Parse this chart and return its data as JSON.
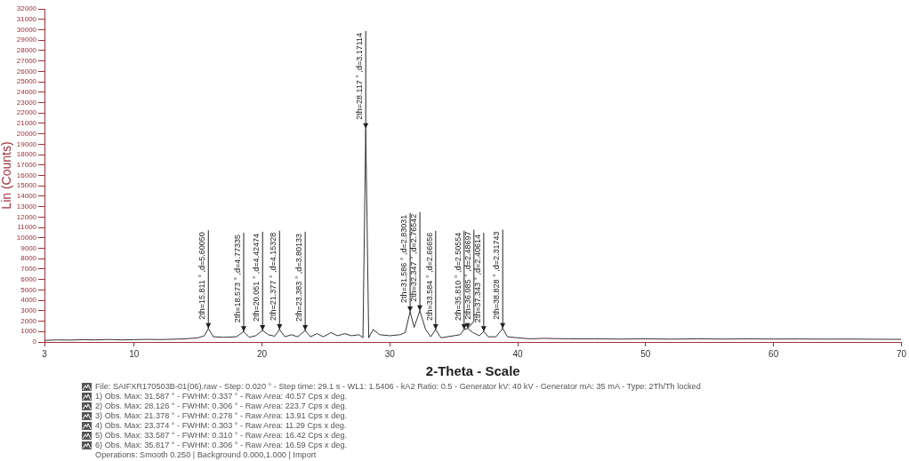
{
  "chart_data": {
    "type": "line",
    "xlabel": "2-Theta - Scale",
    "ylabel": "Lin (Counts)",
    "xlim": [
      3,
      70
    ],
    "xticks": [
      3,
      10,
      20,
      30,
      40,
      50,
      60,
      70
    ],
    "ylim": [
      0,
      32000
    ],
    "yticks": [
      0,
      1000,
      2000,
      3000,
      4000,
      5000,
      6000,
      7000,
      8000,
      9000,
      10000,
      11000,
      12000,
      13000,
      14000,
      15000,
      16000,
      17000,
      18000,
      19000,
      20000,
      21000,
      22000,
      23000,
      24000,
      25000,
      26000,
      27000,
      28000,
      29000,
      30000,
      31000,
      32000
    ],
    "grid": false,
    "legend": false,
    "marker": "none",
    "line_style": "solid",
    "series": [
      {
        "color": "#333333",
        "x": [
          3,
          4,
          5,
          6,
          7,
          8,
          9,
          10,
          11,
          12,
          13,
          14,
          15,
          15.5,
          15.811,
          16.2,
          17,
          18,
          18.573,
          19,
          19.5,
          20.051,
          20.5,
          21,
          21.377,
          21.8,
          22.3,
          22.8,
          23.383,
          23.8,
          24.3,
          24.8,
          25.4,
          25.9,
          26.5,
          27,
          27.6,
          27.9,
          28.117,
          28.35,
          28.7,
          29.2,
          30,
          30.8,
          31.2,
          31.586,
          31.9,
          32.347,
          32.8,
          33.2,
          33.584,
          34,
          34.5,
          35,
          35.5,
          35.81,
          36.085,
          36.5,
          37,
          37.343,
          37.7,
          38.3,
          38.828,
          39.2,
          40,
          41,
          42,
          44,
          46,
          48,
          50,
          52,
          54,
          56,
          58,
          60,
          62,
          64,
          66,
          68,
          70
        ],
        "values": [
          150,
          200,
          180,
          220,
          200,
          240,
          200,
          220,
          250,
          230,
          260,
          300,
          400,
          600,
          1300,
          500,
          450,
          500,
          1000,
          450,
          600,
          1100,
          700,
          550,
          1200,
          500,
          700,
          500,
          1100,
          500,
          800,
          500,
          900,
          600,
          800,
          600,
          700,
          400,
          20500,
          400,
          1200,
          700,
          600,
          700,
          900,
          2900,
          1400,
          3000,
          1200,
          500,
          1200,
          400,
          500,
          600,
          700,
          1200,
          1300,
          900,
          600,
          1000,
          500,
          500,
          1300,
          500,
          400,
          300,
          350,
          300,
          300,
          280,
          300,
          270,
          300,
          280,
          300,
          280,
          290,
          270,
          280,
          260,
          250
        ]
      }
    ],
    "annotations": [
      {
        "text": "2th=15.811 ° ,d=5.60050",
        "x": 15.811,
        "y": 1300
      },
      {
        "text": "2th=18.573 ° ,d=4.77335",
        "x": 18.573,
        "y": 1000
      },
      {
        "text": "2th=20.051 ° ,d=4.42474",
        "x": 20.051,
        "y": 1100
      },
      {
        "text": "2th=21.377 ° ,d=4.15328",
        "x": 21.377,
        "y": 1200
      },
      {
        "text": "2th=23.383 ° ,d=3.80133",
        "x": 23.383,
        "y": 1100
      },
      {
        "text": "2th=28.117 ° ,d=3.17114",
        "x": 28.117,
        "y": 20500
      },
      {
        "text": "2th=31.586 ° ,d=2.83031",
        "x": 31.586,
        "y": 2900
      },
      {
        "text": "2th=32.347 ° ,d=2.76542",
        "x": 32.347,
        "y": 3000
      },
      {
        "text": "2th=33.584 ° ,d=2.66656",
        "x": 33.584,
        "y": 1200
      },
      {
        "text": "2th=35.810 ° ,d=2.50554",
        "x": 35.81,
        "y": 1200
      },
      {
        "text": "2th=36.085 ° ,d=2.48697",
        "x": 36.085,
        "y": 1300
      },
      {
        "text": "2th=37.343 ° ,d=2.40614",
        "x": 37.343,
        "y": 1000
      },
      {
        "text": "2th=38.828 ° ,d=2.31743",
        "x": 38.828,
        "y": 1300
      },
      "File: SAIFXR170503B-01(06).raw - Step: 0.020 ° - Step time: 29.1 s - WL1: 1.5406 - kA2 Ratio: 0.5 - Generator kV: 40 kV - Generator mA: 35 mA - Type: 2Th/Th locked",
      "1) Obs. Max: 31.587 ° - FWHM: 0.337 ° - Raw Area: 40.57 Cps x deg.",
      "2) Obs. Max: 28.126 ° - FWHM: 0.306 ° - Raw Area: 223.7 Cps x deg.",
      "3) Obs. Max: 21.378 ° - FWHM: 0.278 ° - Raw Area: 13.91 Cps x deg.",
      "4) Obs. Max: 23.374 ° - FWHM: 0.303 ° - Raw Area: 11.29 Cps x deg.",
      "5) Obs. Max: 33.587 ° - FWHM: 0.310 ° - Raw Area: 16.42 Cps x deg.",
      "6) Obs. Max: 35.817 ° - FWHM: 0.306 ° - Raw Area: 16.59 Cps x deg.",
      "Operations: Smooth 0.250 | Background 0.000,1.000 | Import"
    ]
  }
}
